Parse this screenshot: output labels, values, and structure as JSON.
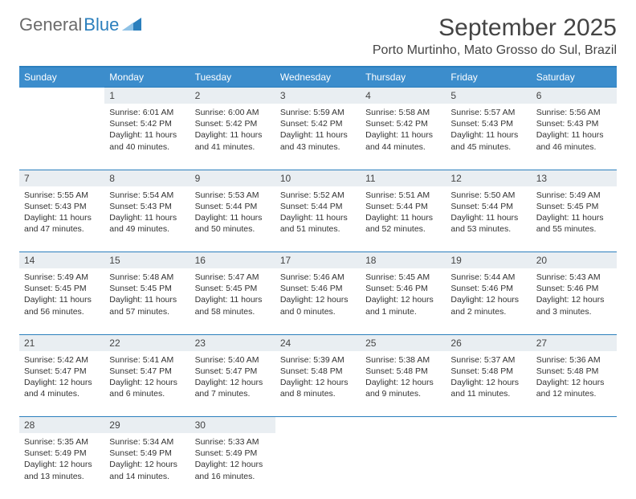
{
  "logo": {
    "text1": "General",
    "text2": "Blue"
  },
  "title": "September 2025",
  "subtitle": "Porto Murtinho, Mato Grosso do Sul, Brazil",
  "colors": {
    "header_bg": "#3c8dcc",
    "header_text": "#ffffff",
    "daynum_bg": "#e9eef2",
    "divider": "#2b7fbd",
    "page_bg": "#ffffff"
  },
  "weekdays": [
    "Sunday",
    "Monday",
    "Tuesday",
    "Wednesday",
    "Thursday",
    "Friday",
    "Saturday"
  ],
  "weeks": [
    {
      "nums": [
        "",
        "1",
        "2",
        "3",
        "4",
        "5",
        "6"
      ],
      "cells": [
        {
          "empty": true
        },
        {
          "sunrise": "6:01 AM",
          "sunset": "5:42 PM",
          "daylight": "11 hours and 40 minutes."
        },
        {
          "sunrise": "6:00 AM",
          "sunset": "5:42 PM",
          "daylight": "11 hours and 41 minutes."
        },
        {
          "sunrise": "5:59 AM",
          "sunset": "5:42 PM",
          "daylight": "11 hours and 43 minutes."
        },
        {
          "sunrise": "5:58 AM",
          "sunset": "5:42 PM",
          "daylight": "11 hours and 44 minutes."
        },
        {
          "sunrise": "5:57 AM",
          "sunset": "5:43 PM",
          "daylight": "11 hours and 45 minutes."
        },
        {
          "sunrise": "5:56 AM",
          "sunset": "5:43 PM",
          "daylight": "11 hours and 46 minutes."
        }
      ]
    },
    {
      "nums": [
        "7",
        "8",
        "9",
        "10",
        "11",
        "12",
        "13"
      ],
      "cells": [
        {
          "sunrise": "5:55 AM",
          "sunset": "5:43 PM",
          "daylight": "11 hours and 47 minutes."
        },
        {
          "sunrise": "5:54 AM",
          "sunset": "5:43 PM",
          "daylight": "11 hours and 49 minutes."
        },
        {
          "sunrise": "5:53 AM",
          "sunset": "5:44 PM",
          "daylight": "11 hours and 50 minutes."
        },
        {
          "sunrise": "5:52 AM",
          "sunset": "5:44 PM",
          "daylight": "11 hours and 51 minutes."
        },
        {
          "sunrise": "5:51 AM",
          "sunset": "5:44 PM",
          "daylight": "11 hours and 52 minutes."
        },
        {
          "sunrise": "5:50 AM",
          "sunset": "5:44 PM",
          "daylight": "11 hours and 53 minutes."
        },
        {
          "sunrise": "5:49 AM",
          "sunset": "5:45 PM",
          "daylight": "11 hours and 55 minutes."
        }
      ]
    },
    {
      "nums": [
        "14",
        "15",
        "16",
        "17",
        "18",
        "19",
        "20"
      ],
      "cells": [
        {
          "sunrise": "5:49 AM",
          "sunset": "5:45 PM",
          "daylight": "11 hours and 56 minutes."
        },
        {
          "sunrise": "5:48 AM",
          "sunset": "5:45 PM",
          "daylight": "11 hours and 57 minutes."
        },
        {
          "sunrise": "5:47 AM",
          "sunset": "5:45 PM",
          "daylight": "11 hours and 58 minutes."
        },
        {
          "sunrise": "5:46 AM",
          "sunset": "5:46 PM",
          "daylight": "12 hours and 0 minutes."
        },
        {
          "sunrise": "5:45 AM",
          "sunset": "5:46 PM",
          "daylight": "12 hours and 1 minute."
        },
        {
          "sunrise": "5:44 AM",
          "sunset": "5:46 PM",
          "daylight": "12 hours and 2 minutes."
        },
        {
          "sunrise": "5:43 AM",
          "sunset": "5:46 PM",
          "daylight": "12 hours and 3 minutes."
        }
      ]
    },
    {
      "nums": [
        "21",
        "22",
        "23",
        "24",
        "25",
        "26",
        "27"
      ],
      "cells": [
        {
          "sunrise": "5:42 AM",
          "sunset": "5:47 PM",
          "daylight": "12 hours and 4 minutes."
        },
        {
          "sunrise": "5:41 AM",
          "sunset": "5:47 PM",
          "daylight": "12 hours and 6 minutes."
        },
        {
          "sunrise": "5:40 AM",
          "sunset": "5:47 PM",
          "daylight": "12 hours and 7 minutes."
        },
        {
          "sunrise": "5:39 AM",
          "sunset": "5:48 PM",
          "daylight": "12 hours and 8 minutes."
        },
        {
          "sunrise": "5:38 AM",
          "sunset": "5:48 PM",
          "daylight": "12 hours and 9 minutes."
        },
        {
          "sunrise": "5:37 AM",
          "sunset": "5:48 PM",
          "daylight": "12 hours and 11 minutes."
        },
        {
          "sunrise": "5:36 AM",
          "sunset": "5:48 PM",
          "daylight": "12 hours and 12 minutes."
        }
      ]
    },
    {
      "nums": [
        "28",
        "29",
        "30",
        "",
        "",
        "",
        ""
      ],
      "cells": [
        {
          "sunrise": "5:35 AM",
          "sunset": "5:49 PM",
          "daylight": "12 hours and 13 minutes."
        },
        {
          "sunrise": "5:34 AM",
          "sunset": "5:49 PM",
          "daylight": "12 hours and 14 minutes."
        },
        {
          "sunrise": "5:33 AM",
          "sunset": "5:49 PM",
          "daylight": "12 hours and 16 minutes."
        },
        {
          "empty": true
        },
        {
          "empty": true
        },
        {
          "empty": true
        },
        {
          "empty": true
        }
      ]
    }
  ],
  "labels": {
    "sunrise": "Sunrise: ",
    "sunset": "Sunset: ",
    "daylight": "Daylight: "
  }
}
